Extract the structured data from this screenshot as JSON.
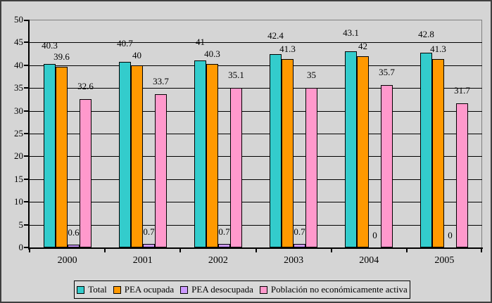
{
  "chart_data": {
    "type": "bar",
    "title": "",
    "xlabel": "",
    "ylabel": "",
    "categories": [
      "2000",
      "2001",
      "2002",
      "2003",
      "2004",
      "2005"
    ],
    "series": [
      {
        "name": "Total",
        "color": "#33CCCC",
        "values": [
          40.3,
          40.7,
          41,
          42.4,
          43.1,
          42.8
        ]
      },
      {
        "name": "PEA ocupada",
        "color": "#FF9900",
        "values": [
          39.6,
          40,
          40.3,
          41.3,
          42,
          41.3
        ]
      },
      {
        "name": "PEA desocupada",
        "color": "#CC99FF",
        "values": [
          0.6,
          0.7,
          0.7,
          0.7,
          0,
          0
        ]
      },
      {
        "name": "Población no económicamente activa",
        "color": "#FF99CC",
        "values": [
          32.6,
          33.7,
          35.1,
          35,
          35.7,
          31.7
        ]
      }
    ],
    "ylim": [
      0,
      50
    ],
    "ytick_step": 5,
    "yticks": [
      "0",
      "5",
      "10",
      "15",
      "20",
      "25",
      "30",
      "35",
      "40",
      "45",
      "50"
    ],
    "grid": true,
    "legend_position": "bottom"
  }
}
